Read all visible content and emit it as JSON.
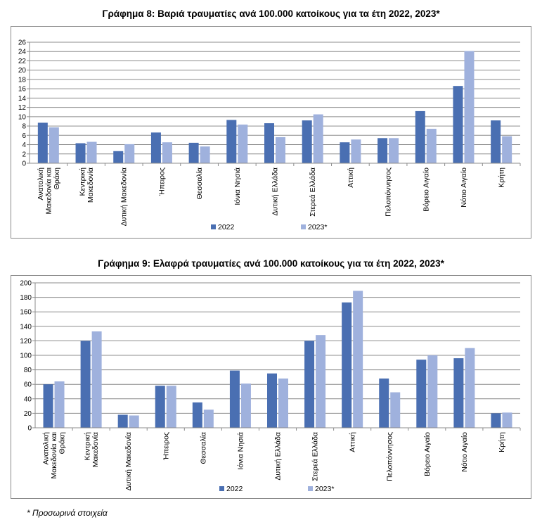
{
  "colors": {
    "series_2022": "#4a6fb2",
    "series_2023": "#9fb1dd",
    "grid": "#8c8c8c"
  },
  "note": "* Προσωρινά στοιχεία",
  "chart_data": [
    {
      "type": "bar",
      "title": "Γράφημα 8: Βαριά τραυματίες ανά 100.000 κατοίκους για τα έτη 2022, 2023*",
      "categories": [
        [
          "Ανατολική",
          "Μακεδονία και",
          "Θράκη"
        ],
        [
          "Κεντρική",
          "Μακεδονία"
        ],
        [
          "Δυτική Μακεδονία"
        ],
        [
          "Ήπειρος"
        ],
        [
          "Θεσσαλία"
        ],
        [
          "Ιόνια Νησιά"
        ],
        [
          "Δυτική Ελλάδα"
        ],
        [
          "Στερεά Ελλάδα"
        ],
        [
          "Αττική"
        ],
        [
          "Πελοπόννησος"
        ],
        [
          "Βόρειο Αιγαίο"
        ],
        [
          "Νότιο Αιγαίο"
        ],
        [
          "Κρήτη"
        ]
      ],
      "series": [
        {
          "name": "2022",
          "values": [
            8.7,
            4.3,
            2.6,
            6.6,
            4.4,
            9.3,
            8.6,
            9.2,
            4.5,
            5.4,
            11.2,
            16.6,
            9.2
          ]
        },
        {
          "name": "2023*",
          "values": [
            7.7,
            4.6,
            4.1,
            4.5,
            3.6,
            8.3,
            5.6,
            10.5,
            5.1,
            5.4,
            7.4,
            24.1,
            5.8
          ]
        }
      ],
      "ylim": [
        0,
        26
      ],
      "yticks": [
        "0",
        "2",
        "4",
        "6",
        "8",
        "10",
        "12",
        "14",
        "16",
        "18",
        "20",
        "22",
        "24",
        "26"
      ],
      "legend": [
        "2022",
        "2023*"
      ]
    },
    {
      "type": "bar",
      "title": "Γράφημα 9: Ελαφρά τραυματίες ανά 100.000 κατοίκους για τα έτη 2022, 2023*",
      "categories": [
        [
          "Ανατολική",
          "Μακεδονία και",
          "Θράκη"
        ],
        [
          "Κεντρική",
          "Μακεδονία"
        ],
        [
          "Δυτική Μακεδονία"
        ],
        [
          "Ήπειρος"
        ],
        [
          "Θεσσαλία"
        ],
        [
          "Ιόνια Νησιά"
        ],
        [
          "Δυτική Ελλάδα"
        ],
        [
          "Στερεά Ελλάδα"
        ],
        [
          "Αττική"
        ],
        [
          "Πελοπόννησος"
        ],
        [
          "Βόρειο Αιγαίο"
        ],
        [
          "Νότιο Αιγαίο"
        ],
        [
          "Κρήτη"
        ]
      ],
      "series": [
        {
          "name": "2022",
          "values": [
            60,
            120,
            18,
            58,
            35,
            79,
            75,
            120,
            173,
            68,
            94,
            96,
            20
          ]
        },
        {
          "name": "2023*",
          "values": [
            64,
            133,
            17,
            58,
            25,
            61,
            68,
            128,
            189,
            49,
            100,
            110,
            21
          ]
        }
      ],
      "ylim": [
        0,
        200
      ],
      "yticks": [
        "0",
        "20",
        "40",
        "60",
        "80",
        "100",
        "120",
        "140",
        "160",
        "180",
        "200"
      ],
      "legend": [
        "2022",
        "2023*"
      ]
    }
  ]
}
